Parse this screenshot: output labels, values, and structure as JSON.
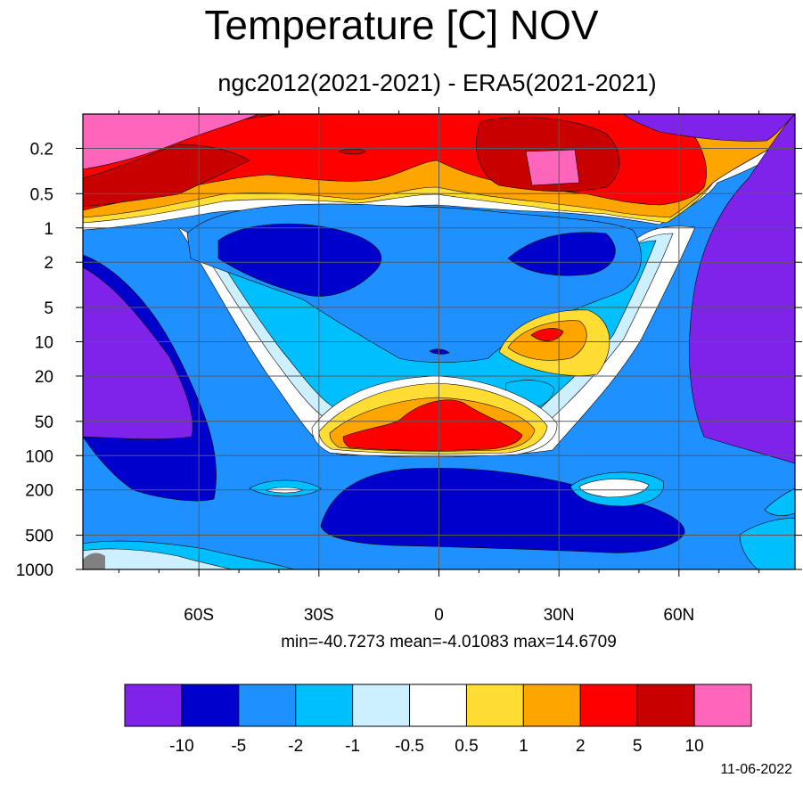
{
  "title": "Temperature [C] NOV",
  "subtitle": "ngc2012(2021-2021) - ERA5(2021-2021)",
  "stats_text": "min=-40.7273   mean=-4.01083   max=14.6709",
  "date": "11-06-2022",
  "chart_data": {
    "type": "contour",
    "x_ticks": [
      "60S",
      "30S",
      "0",
      "30N",
      "60N"
    ],
    "x_values": [
      -60,
      -30,
      0,
      30,
      60
    ],
    "xlim": [
      -89,
      89
    ],
    "y_ticks": [
      "0.2",
      "0.5",
      "1",
      "2",
      "5",
      "10",
      "20",
      "50",
      "100",
      "200",
      "500",
      "1000"
    ],
    "y_values": [
      0.2,
      0.5,
      1,
      2,
      5,
      10,
      20,
      50,
      100,
      200,
      500,
      1000
    ],
    "y_scale": "log",
    "y_reversed": true,
    "ylim": [
      0.1,
      1000
    ],
    "grid": true,
    "stats": {
      "min": -40.7273,
      "mean": -4.01083,
      "max": 14.6709
    },
    "levels": [
      "-10",
      "-5",
      "-2",
      "-1",
      "-0.5",
      "0.5",
      "1",
      "2",
      "5",
      "10"
    ],
    "colors": [
      "#7f22ea",
      "#0000cd",
      "#1e90ff",
      "#00bfff",
      "#ccf0ff",
      "#ffffff",
      "#ffdd33",
      "#ffa500",
      "#ff0000",
      "#c80000",
      "#ff66bb"
    ]
  }
}
